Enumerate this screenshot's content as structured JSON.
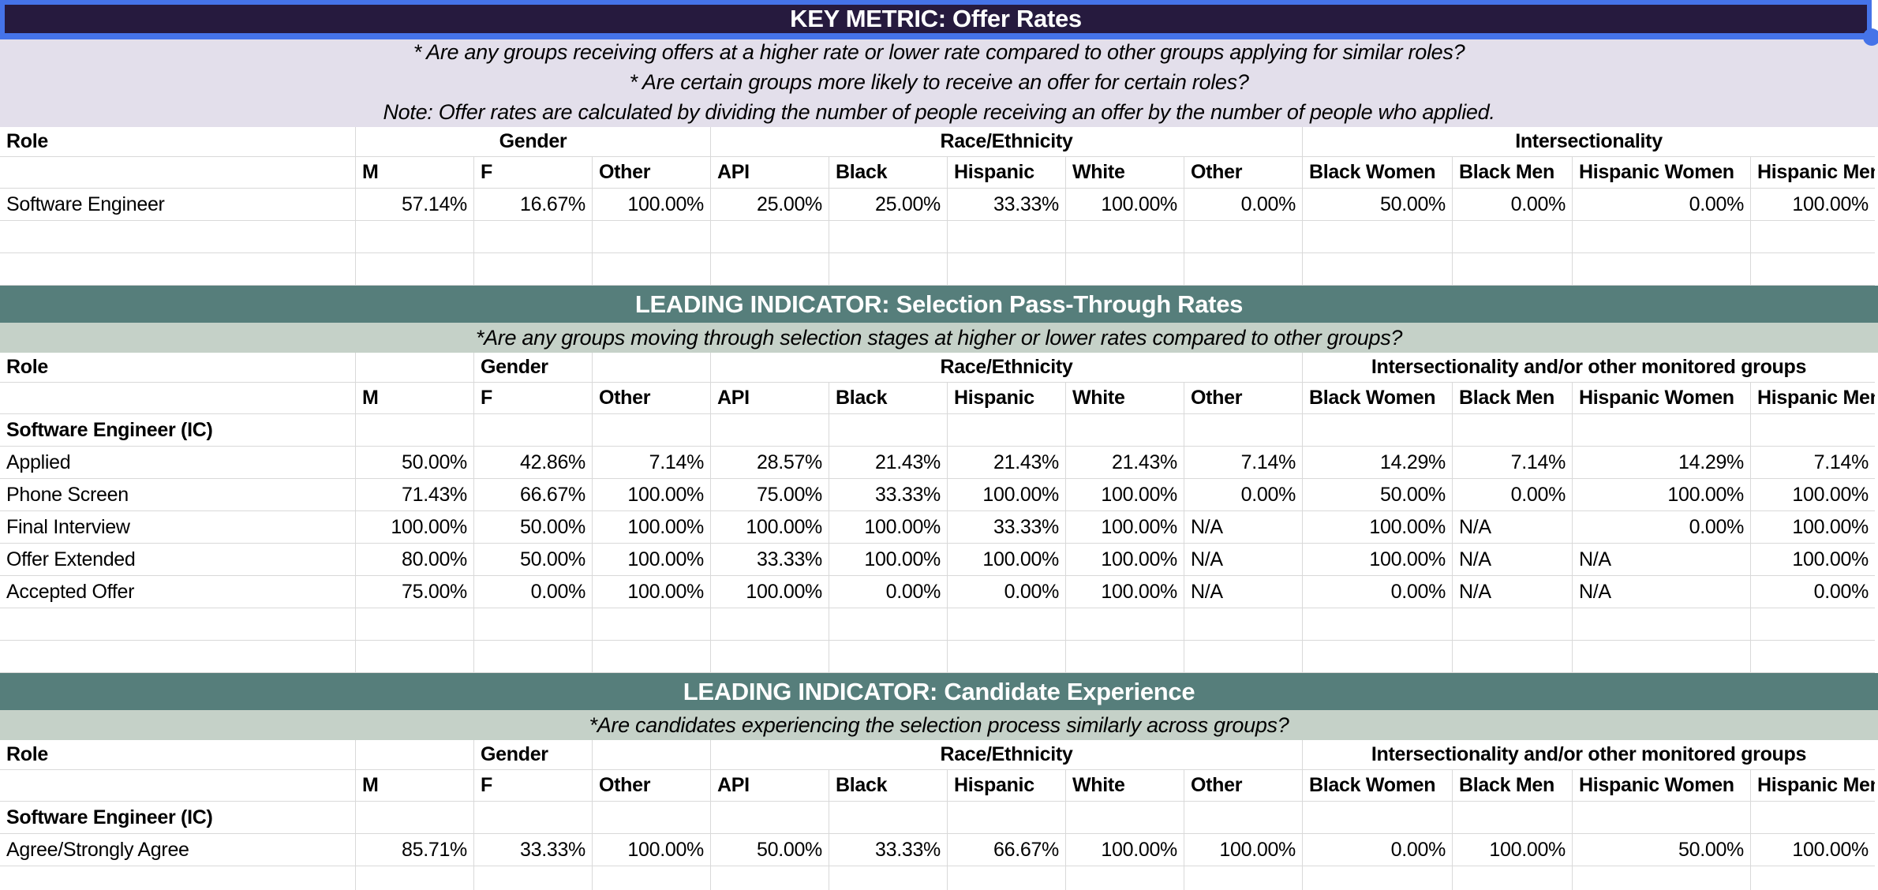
{
  "colors": {
    "key_metric_header_bg": "#261a3e",
    "key_metric_subtitle_bg": "#e3dfeb",
    "leading_indicator_header_bg": "#567e7b",
    "leading_indicator_subtitle_bg": "#c5d1c8",
    "selection_border": "#4573e8",
    "gridline": "#d9d9d9",
    "title_text": "#ffffff",
    "body_text": "#000000"
  },
  "column_headers": [
    "",
    "M",
    "F",
    "Other",
    "API",
    "Black",
    "Hispanic",
    "White",
    "Other",
    "Black Women",
    "Black Men",
    "Hispanic Women",
    "Hispanic Men"
  ],
  "sections": [
    {
      "title": "KEY METRIC: Offer Rates",
      "style": "key-metric",
      "selected": true,
      "subtitles": [
        "* Are any groups receiving offers at a higher rate or lower rate compared to other groups applying for similar roles?",
        "* Are certain groups more likely to receive an offer for certain roles?",
        "Note: Offer rates are calculated by dividing the number of people receiving an offer by the number of people who applied."
      ],
      "group_header": {
        "role": "Role",
        "gender": "Gender",
        "gender_centered": true,
        "race_ethnicity": "Race/Ethnicity",
        "intersectionality": "Intersectionality"
      },
      "rows": [
        {
          "label": "Software Engineer",
          "bold": false,
          "values": [
            "57.14%",
            "16.67%",
            "100.00%",
            "25.00%",
            "25.00%",
            "33.33%",
            "100.00%",
            "0.00%",
            "50.00%",
            "0.00%",
            "0.00%",
            "100.00%"
          ]
        }
      ],
      "trailing_empty_rows": 2
    },
    {
      "title": "LEADING INDICATOR: Selection Pass-Through Rates",
      "style": "leading-indicator",
      "selected": false,
      "subtitles": [
        "*Are any groups moving through selection stages at higher or lower rates compared to other groups?"
      ],
      "group_header": {
        "role": "Role",
        "gender": "Gender",
        "gender_centered": false,
        "race_ethnicity": "Race/Ethnicity",
        "intersectionality": "Intersectionality and/or other monitored groups"
      },
      "rows": [
        {
          "label": "Software Engineer (IC)",
          "bold": true,
          "values": [
            "",
            "",
            "",
            "",
            "",
            "",
            "",
            "",
            "",
            "",
            "",
            ""
          ]
        },
        {
          "label": "Applied",
          "bold": false,
          "values": [
            "50.00%",
            "42.86%",
            "7.14%",
            "28.57%",
            "21.43%",
            "21.43%",
            "21.43%",
            "7.14%",
            "14.29%",
            "7.14%",
            "14.29%",
            "7.14%"
          ]
        },
        {
          "label": "Phone Screen",
          "bold": false,
          "values": [
            "71.43%",
            "66.67%",
            "100.00%",
            "75.00%",
            "33.33%",
            "100.00%",
            "100.00%",
            "0.00%",
            "50.00%",
            "0.00%",
            "100.00%",
            "100.00%"
          ]
        },
        {
          "label": "Final Interview",
          "bold": false,
          "values": [
            "100.00%",
            "50.00%",
            "100.00%",
            "100.00%",
            "100.00%",
            "33.33%",
            "100.00%",
            "N/A",
            "100.00%",
            "N/A",
            "0.00%",
            "100.00%"
          ]
        },
        {
          "label": "Offer Extended",
          "bold": false,
          "values": [
            "80.00%",
            "50.00%",
            "100.00%",
            "33.33%",
            "100.00%",
            "100.00%",
            "100.00%",
            "N/A",
            "100.00%",
            "N/A",
            "N/A",
            "100.00%"
          ]
        },
        {
          "label": "Accepted Offer",
          "bold": false,
          "values": [
            "75.00%",
            "0.00%",
            "100.00%",
            "100.00%",
            "0.00%",
            "0.00%",
            "100.00%",
            "N/A",
            "0.00%",
            "N/A",
            "N/A",
            "0.00%"
          ]
        }
      ],
      "trailing_empty_rows": 2
    },
    {
      "title": "LEADING INDICATOR: Candidate Experience",
      "style": "leading-indicator",
      "selected": false,
      "subtitles": [
        "*Are candidates experiencing the selection process similarly across groups?"
      ],
      "group_header": {
        "role": "Role",
        "gender": "Gender",
        "gender_centered": false,
        "race_ethnicity": "Race/Ethnicity",
        "intersectionality": "Intersectionality and/or other monitored groups"
      },
      "rows": [
        {
          "label": "Software Engineer (IC)",
          "bold": true,
          "values": [
            "",
            "",
            "",
            "",
            "",
            "",
            "",
            "",
            "",
            "",
            "",
            ""
          ]
        },
        {
          "label": "Agree/Strongly Agree",
          "bold": false,
          "values": [
            "85.71%",
            "33.33%",
            "100.00%",
            "50.00%",
            "33.33%",
            "66.67%",
            "100.00%",
            "100.00%",
            "0.00%",
            "100.00%",
            "50.00%",
            "100.00%"
          ]
        }
      ],
      "trailing_empty_rows": 1
    }
  ]
}
